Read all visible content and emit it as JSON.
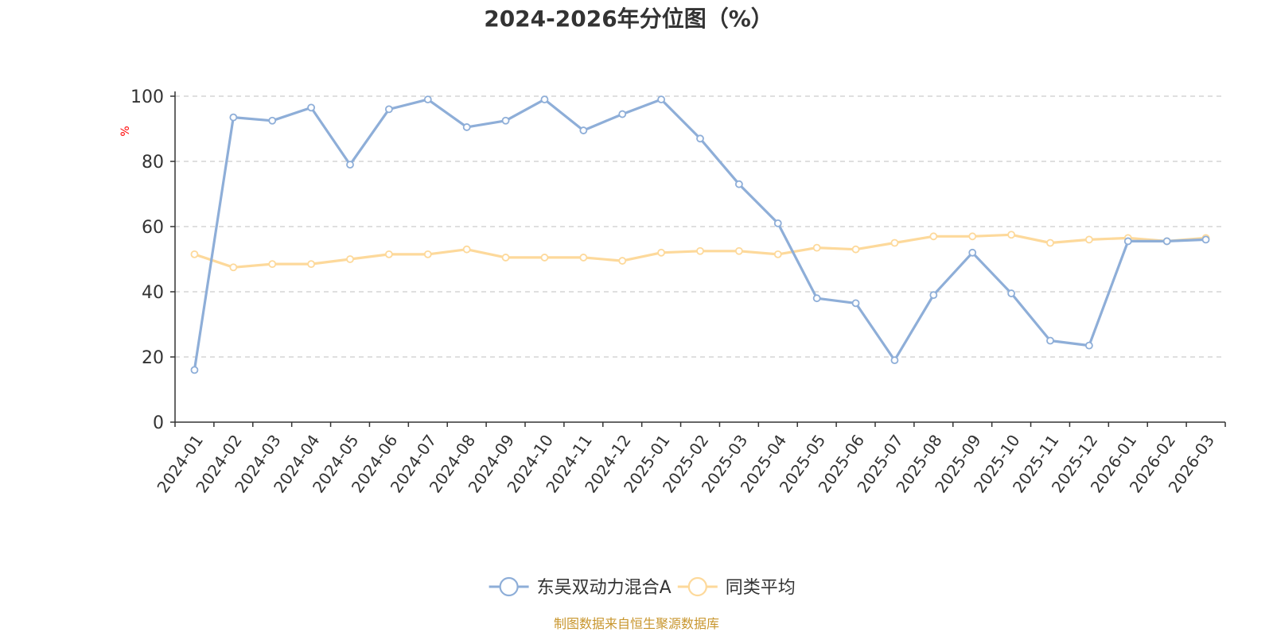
{
  "chart_data": {
    "type": "line",
    "title": "2024-2026年分位图（%）",
    "ylabel": "%",
    "ylim": [
      0,
      100
    ],
    "yticks": [
      "0",
      "20",
      "40",
      "60",
      "80",
      "100"
    ],
    "grid": true,
    "legend_position": "bottom",
    "categories": [
      "2024-01",
      "2024-02",
      "2024-03",
      "2024-04",
      "2024-05",
      "2024-06",
      "2024-07",
      "2024-08",
      "2024-09",
      "2024-10",
      "2024-11",
      "2024-12",
      "2025-01",
      "2025-02",
      "2025-03",
      "2025-04",
      "2025-05",
      "2025-06",
      "2025-07",
      "2025-08",
      "2025-09",
      "2025-10",
      "2025-11",
      "2025-12",
      "2026-01",
      "2026-02",
      "2026-03"
    ],
    "series": [
      {
        "name": "东吴双动力混合A",
        "color": "#8eaed8",
        "values": [
          16,
          93.5,
          92.5,
          96.5,
          79,
          96,
          99,
          90.5,
          92.5,
          99,
          89.5,
          94.5,
          99,
          87,
          73,
          61,
          38,
          36.5,
          19,
          39,
          52,
          39.5,
          25,
          23.5,
          55.5,
          55.5,
          56
        ]
      },
      {
        "name": "同类平均",
        "color": "#fdd99b",
        "values": [
          51.5,
          47.5,
          48.5,
          48.5,
          50,
          51.5,
          51.5,
          53,
          50.5,
          50.5,
          50.5,
          49.5,
          52,
          52.5,
          52.5,
          51.5,
          53.5,
          53,
          55,
          57,
          57,
          57.5,
          55,
          56,
          56.5,
          55.5,
          56.5
        ]
      }
    ]
  },
  "source": "制图数据来自恒生聚源数据库"
}
